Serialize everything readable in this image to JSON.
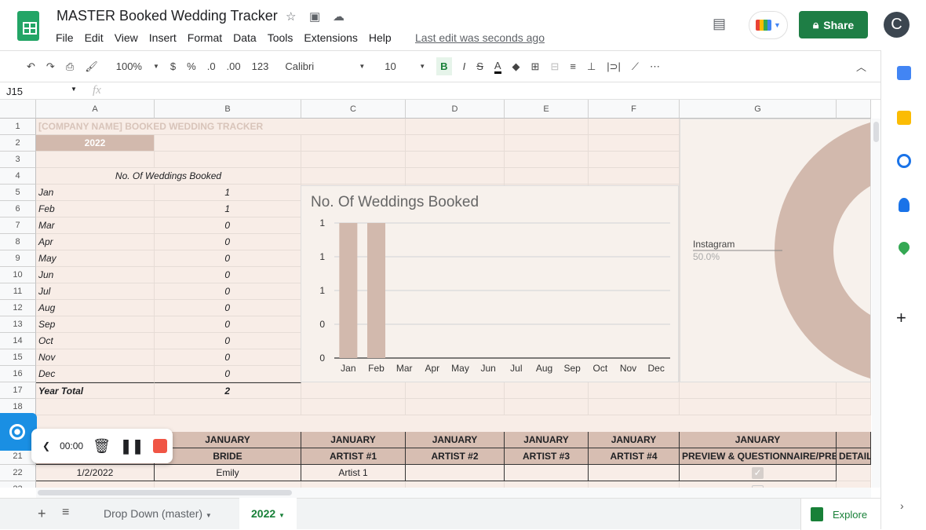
{
  "app": {
    "title": "MASTER Booked Wedding Tracker",
    "menu": [
      "File",
      "Edit",
      "View",
      "Insert",
      "Format",
      "Data",
      "Tools",
      "Extensions",
      "Help"
    ],
    "last_edit": "Last edit was seconds ago",
    "share": "Share",
    "avatar": "C"
  },
  "toolbar": {
    "zoom": "100%",
    "currency": "$",
    "percent": "%",
    "dec_less": ".0",
    "dec_more": ".00",
    "format": "123",
    "font": "Calibri",
    "size": "10",
    "bold": "B",
    "italic": "I",
    "strike": "S",
    "color": "A",
    "more": "⋯"
  },
  "formula": {
    "cell_ref": "J15",
    "fx": "fx",
    "value": ""
  },
  "columns": [
    "A",
    "B",
    "C",
    "D",
    "E",
    "F",
    "G"
  ],
  "sheet": {
    "title": "[COMPANY NAME] BOOKED WEDDING TRACKER",
    "year": "2022",
    "table_header": "No. Of Weddings Booked",
    "months": [
      [
        "Jan",
        "1"
      ],
      [
        "Feb",
        "1"
      ],
      [
        "Mar",
        "0"
      ],
      [
        "Apr",
        "0"
      ],
      [
        "May",
        "0"
      ],
      [
        "Jun",
        "0"
      ],
      [
        "Jul",
        "0"
      ],
      [
        "Aug",
        "0"
      ],
      [
        "Sep",
        "0"
      ],
      [
        "Oct",
        "0"
      ],
      [
        "Nov",
        "0"
      ],
      [
        "Dec",
        "0"
      ]
    ],
    "total": [
      "Year Total",
      "2"
    ],
    "row20": [
      "JANUARY",
      "JANUARY",
      "JANUARY",
      "JANUARY",
      "JANUARY",
      "JANUARY"
    ],
    "row21": [
      "BRIDE",
      "ARTIST #1",
      "ARTIST #2",
      "ARTIST #3",
      "ARTIST #4",
      "PREVIEW & QUESTIONNAIRE/PREP",
      "DETAIL"
    ],
    "row22": [
      "1/2/2022",
      "Emily",
      "Artist 1",
      "",
      "",
      "",
      ""
    ]
  },
  "chart_data": [
    {
      "type": "bar",
      "title": "No. Of Weddings Booked",
      "categories": [
        "Jan",
        "Feb",
        "Mar",
        "Apr",
        "May",
        "Jun",
        "Jul",
        "Aug",
        "Sep",
        "Oct",
        "Nov",
        "Dec"
      ],
      "values": [
        1,
        1,
        0,
        0,
        0,
        0,
        0,
        0,
        0,
        0,
        0,
        0
      ],
      "ylim": [
        0,
        1
      ],
      "ytick_labels": [
        "0",
        "0",
        "1",
        "1",
        "1"
      ],
      "grid": true,
      "color": "#d2b9ad"
    },
    {
      "type": "pie",
      "donut": true,
      "labels": [
        "Instagram"
      ],
      "values": [
        50.0
      ],
      "data_labels": [
        "50.0%"
      ],
      "color": "#d2b9ad"
    }
  ],
  "recorder": {
    "time": "00:00"
  },
  "tabs": {
    "items": [
      "Drop Down (master)",
      "2022"
    ],
    "active": 1,
    "explore": "Explore"
  }
}
